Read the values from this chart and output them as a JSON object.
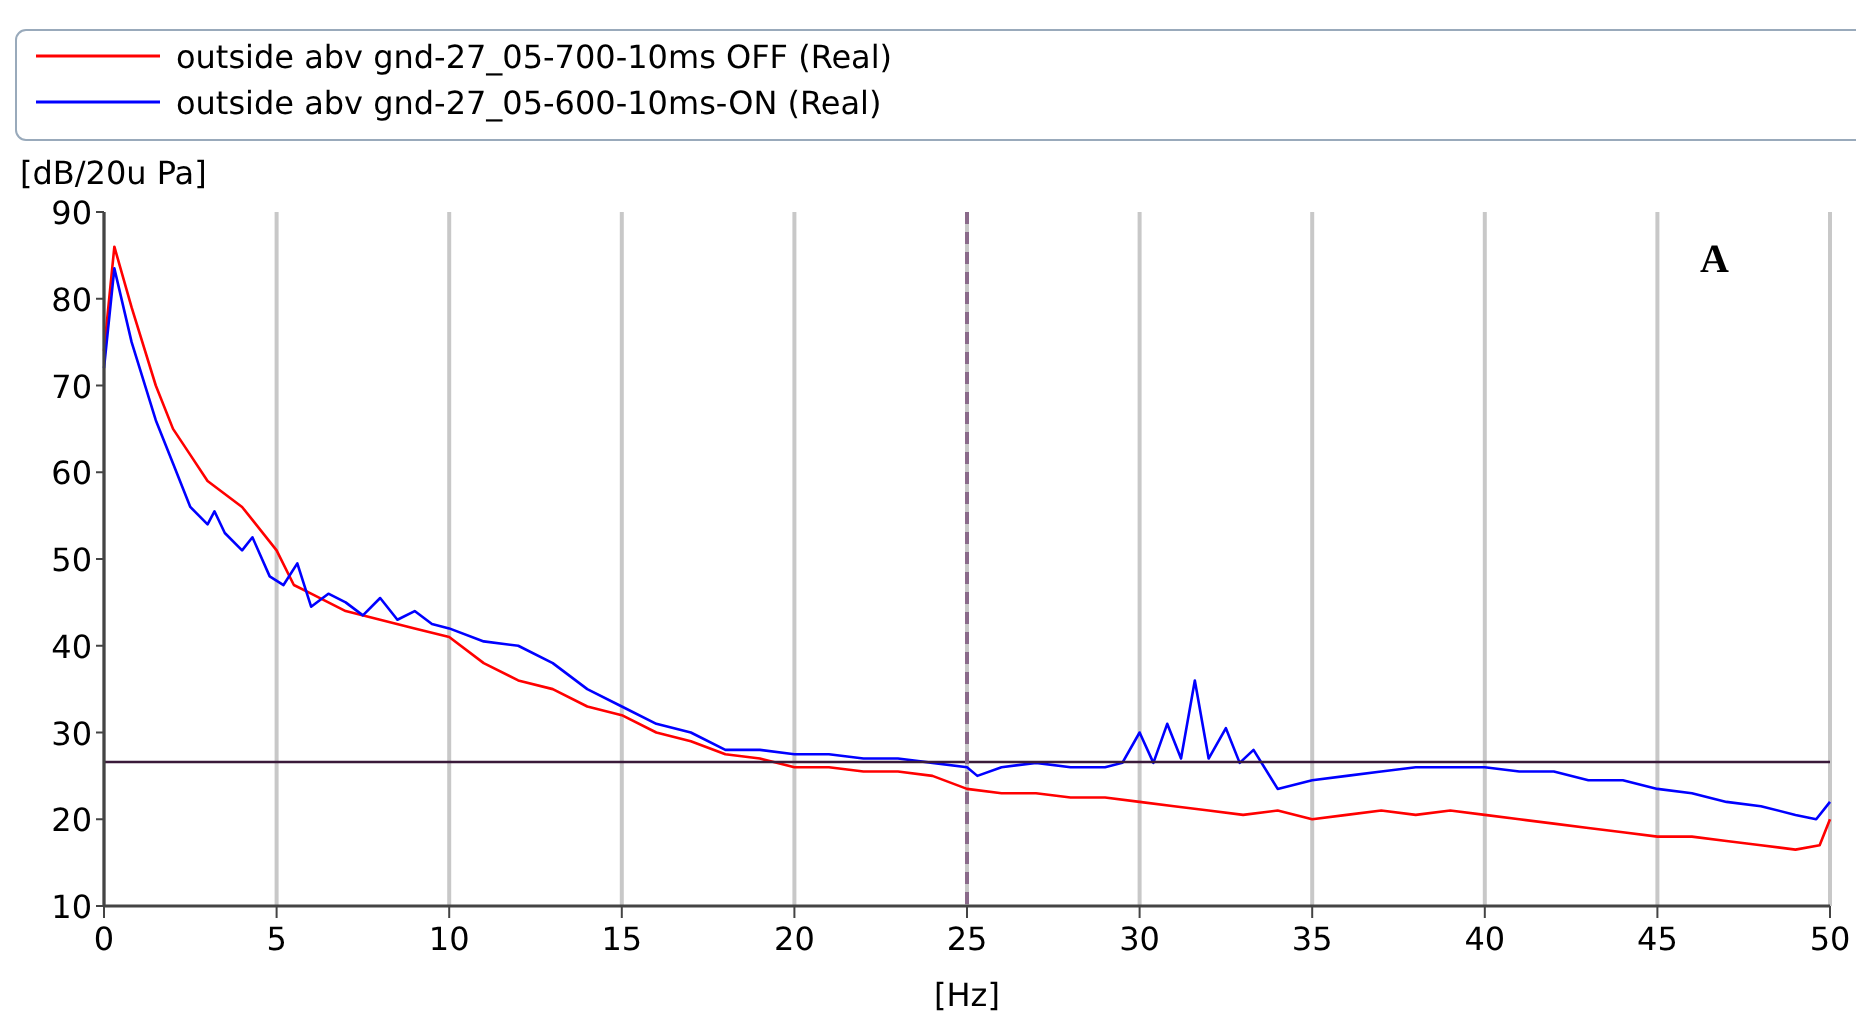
{
  "chart_data": {
    "type": "line",
    "xlabel": "[Hz]",
    "ylabel": "[dB/20u Pa]",
    "xlim": [
      0,
      50
    ],
    "ylim": [
      10,
      90
    ],
    "xticks": [
      0,
      5,
      10,
      15,
      20,
      25,
      30,
      35,
      40,
      45,
      50
    ],
    "yticks": [
      10,
      20,
      30,
      40,
      50,
      60,
      70,
      80,
      90
    ],
    "grid": "x",
    "legend": "top left",
    "line_style": "solid",
    "annotations": [
      "A"
    ],
    "ref_lines": [
      {
        "axis": "y",
        "value": 26.6,
        "color": "#3a1a3a",
        "line_style": "solid"
      },
      {
        "axis": "x",
        "value": 25,
        "color": "#8a6a8a",
        "line_style": "dashed"
      }
    ],
    "series": [
      {
        "name": "outside abv gnd-27_05-700-10ms OFF (Real)",
        "color": "#ff0000",
        "x": [
          0,
          0.3,
          0.8,
          1.5,
          2,
          2.5,
          3,
          4,
          5,
          5.5,
          6,
          7,
          8,
          9,
          10,
          11,
          12,
          13,
          14,
          15,
          16,
          17,
          18,
          19,
          20,
          21,
          22,
          23,
          24,
          25,
          26,
          27,
          28,
          29,
          30,
          31,
          32,
          33,
          34,
          35,
          36,
          37,
          38,
          39,
          40,
          41,
          42,
          43,
          44,
          45,
          46,
          47,
          48,
          49,
          49.7,
          50
        ],
        "values": [
          74,
          86,
          79,
          70,
          65,
          62,
          59,
          56,
          51,
          47,
          46,
          44,
          43,
          42,
          41,
          38,
          36,
          35,
          33,
          32,
          30,
          29,
          27.5,
          27,
          26,
          26,
          25.5,
          25.5,
          25,
          23.5,
          23,
          23,
          22.5,
          22.5,
          22,
          21.5,
          21,
          20.5,
          21,
          20,
          20.5,
          21,
          20.5,
          21,
          20.5,
          20,
          19.5,
          19,
          18.5,
          18,
          18,
          17.5,
          17,
          16.5,
          17,
          20
        ]
      },
      {
        "name": "outside abv gnd-27_05-600-10ms-ON (Real)",
        "color": "#0000ff",
        "x": [
          0,
          0.3,
          0.8,
          1.5,
          2,
          2.5,
          3,
          3.2,
          3.5,
          4,
          4.3,
          4.8,
          5.2,
          5.6,
          6,
          6.5,
          7,
          7.5,
          8,
          8.5,
          9,
          9.5,
          10,
          11,
          12,
          13,
          14,
          15,
          16,
          17,
          18,
          19,
          20,
          21,
          22,
          23,
          24,
          25,
          25.3,
          26,
          27,
          28,
          29,
          29.5,
          30,
          30.4,
          30.8,
          31.2,
          31.6,
          32,
          32.5,
          32.9,
          33.3,
          34,
          35,
          36,
          37,
          38,
          39,
          40,
          41,
          42,
          43,
          44,
          45,
          46,
          47,
          48,
          49,
          49.6,
          50
        ],
        "values": [
          72,
          83.5,
          75,
          66,
          61,
          56,
          54,
          55.5,
          53,
          51,
          52.5,
          48,
          47,
          49.5,
          44.5,
          46,
          45,
          43.5,
          45.5,
          43,
          44,
          42.5,
          42,
          40.5,
          40,
          38,
          35,
          33,
          31,
          30,
          28,
          28,
          27.5,
          27.5,
          27,
          27,
          26.5,
          26,
          25,
          26,
          26.5,
          26,
          26,
          26.5,
          30,
          26.5,
          31,
          27,
          36,
          27,
          30.5,
          26.5,
          28,
          23.5,
          24.5,
          25,
          25.5,
          26,
          26,
          26,
          25.5,
          25.5,
          24.5,
          24.5,
          23.5,
          23,
          22,
          21.5,
          20.5,
          20,
          22
        ]
      }
    ]
  }
}
